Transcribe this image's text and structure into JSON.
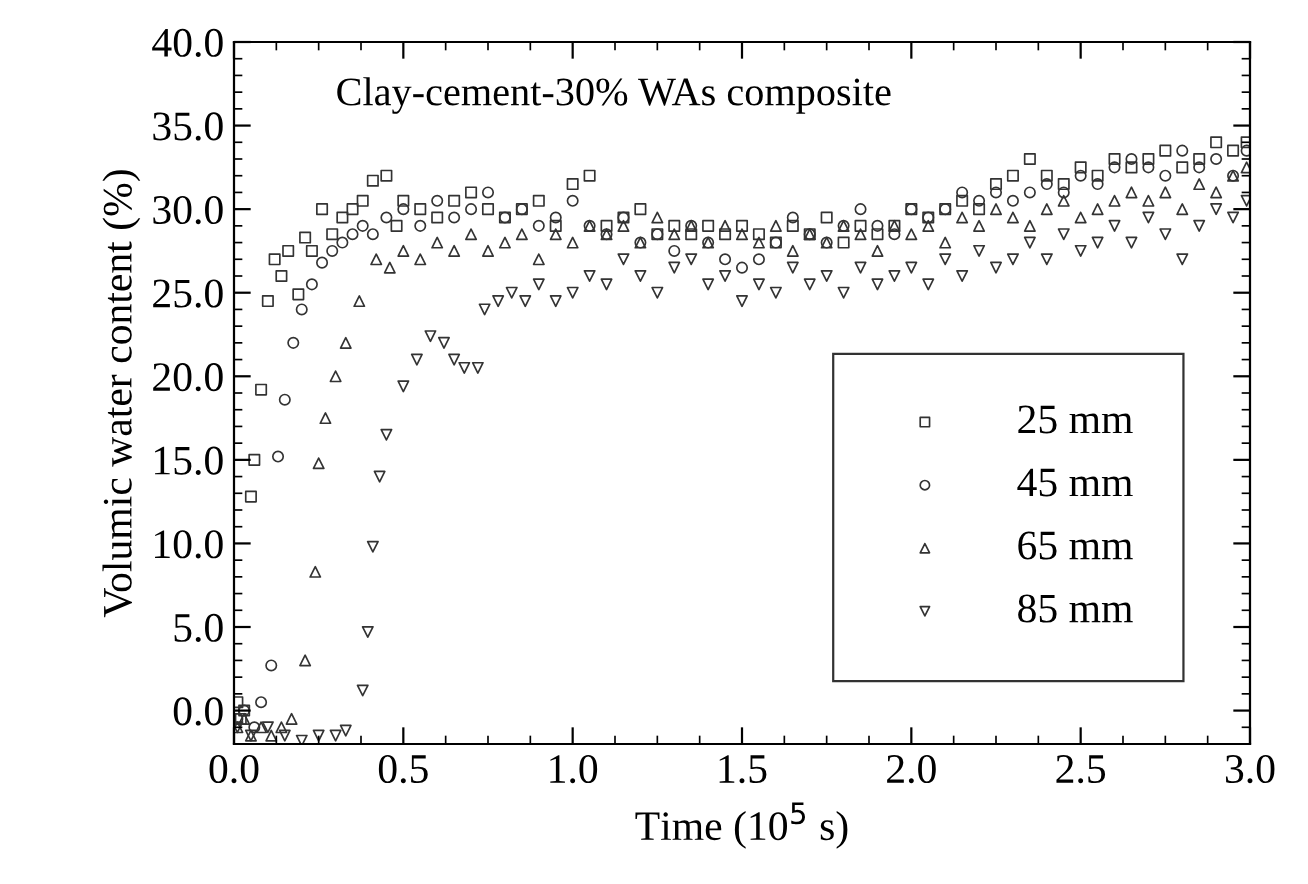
{
  "chart_data": {
    "type": "scatter",
    "xlabel": "Time (10$^{5}$ s)",
    "ylabel": "Volumic water content (%)",
    "annotations": [
      "Clay-cement-30% WAs composite"
    ],
    "xlim": [
      0.0,
      3.0
    ],
    "ylim": [
      -2.0,
      40.0
    ],
    "xticks": [
      {
        "value": 0.0,
        "label": "0.0"
      },
      {
        "value": 0.5,
        "label": "0.5"
      },
      {
        "value": 1.0,
        "label": "1.0"
      },
      {
        "value": 1.5,
        "label": "1.5"
      },
      {
        "value": 2.0,
        "label": "2.0"
      },
      {
        "value": 2.5,
        "label": "2.5"
      },
      {
        "value": 3.0,
        "label": "3.0"
      }
    ],
    "yticks": [
      {
        "value": 0,
        "label": "0.0"
      },
      {
        "value": 5,
        "label": "5.0"
      },
      {
        "value": 10,
        "label": "10.0"
      },
      {
        "value": 15,
        "label": "15.0"
      },
      {
        "value": 20,
        "label": "20.0"
      },
      {
        "value": 25,
        "label": "25.0"
      },
      {
        "value": 30,
        "label": "30.0"
      },
      {
        "value": 35,
        "label": "35.0"
      },
      {
        "value": 40,
        "label": "40.0"
      }
    ],
    "grid": false,
    "legend": "bottom right",
    "series": [
      {
        "name": "25 mm",
        "color": "#333333",
        "marker": "square",
        "x": [
          0.01,
          0.02,
          0.03,
          0.05,
          0.06,
          0.08,
          0.1,
          0.12,
          0.14,
          0.16,
          0.19,
          0.21,
          0.23,
          0.26,
          0.29,
          0.32,
          0.35,
          0.38,
          0.41,
          0.45,
          0.48,
          0.5,
          0.55,
          0.6,
          0.65,
          0.7,
          0.75,
          0.8,
          0.85,
          0.9,
          0.95,
          1.0,
          1.05,
          1.1,
          1.15,
          1.2,
          1.25,
          1.3,
          1.35,
          1.4,
          1.45,
          1.5,
          1.55,
          1.6,
          1.65,
          1.7,
          1.75,
          1.8,
          1.85,
          1.9,
          1.95,
          2.0,
          2.05,
          2.1,
          2.15,
          2.2,
          2.25,
          2.3,
          2.35,
          2.4,
          2.45,
          2.5,
          2.55,
          2.6,
          2.65,
          2.7,
          2.75,
          2.8,
          2.85,
          2.9,
          2.95,
          2.99
        ],
        "values": [
          0.5,
          -0.5,
          0,
          12.8,
          15,
          19.2,
          24.5,
          27,
          26,
          27.5,
          24.9,
          28.3,
          27.5,
          30,
          28.5,
          29.5,
          30,
          30.5,
          31.7,
          32,
          29,
          30.5,
          30,
          29.5,
          30.5,
          31,
          30,
          29.5,
          30,
          30.5,
          29,
          31.5,
          32,
          29,
          29.5,
          30,
          28.5,
          29,
          28.5,
          29,
          28.5,
          29,
          28.5,
          28,
          29,
          28.5,
          29.5,
          28,
          29,
          28.5,
          29,
          30,
          29.5,
          30,
          30.5,
          30,
          31.5,
          32,
          33,
          32,
          31.5,
          32.5,
          32,
          33,
          32.5,
          33,
          33.5,
          32.5,
          33,
          34,
          33.5,
          34
        ]
      },
      {
        "name": "45 mm",
        "color": "#333333",
        "marker": "circle",
        "x": [
          0.01,
          0.03,
          0.06,
          0.08,
          0.11,
          0.13,
          0.15,
          0.175,
          0.2,
          0.23,
          0.26,
          0.29,
          0.32,
          0.35,
          0.38,
          0.41,
          0.45,
          0.5,
          0.55,
          0.6,
          0.65,
          0.7,
          0.75,
          0.8,
          0.85,
          0.9,
          0.95,
          1.0,
          1.05,
          1.1,
          1.15,
          1.2,
          1.25,
          1.3,
          1.35,
          1.4,
          1.45,
          1.5,
          1.55,
          1.6,
          1.65,
          1.7,
          1.75,
          1.8,
          1.85,
          1.9,
          1.95,
          2.0,
          2.05,
          2.1,
          2.15,
          2.2,
          2.25,
          2.3,
          2.35,
          2.4,
          2.45,
          2.5,
          2.55,
          2.6,
          2.65,
          2.7,
          2.75,
          2.8,
          2.85,
          2.9,
          2.95,
          2.99
        ],
        "values": [
          -0.5,
          0,
          -1,
          0.5,
          2.7,
          15.2,
          18.6,
          22,
          24,
          25.5,
          26.8,
          27.5,
          28,
          28.5,
          29,
          28.5,
          29.5,
          30,
          29,
          30.5,
          29.5,
          30,
          31,
          29.5,
          30,
          29,
          29.5,
          30.5,
          29,
          28.5,
          29.5,
          28,
          28.5,
          27.5,
          29,
          28,
          27,
          26.5,
          27,
          28,
          29.5,
          28.5,
          28,
          29,
          30,
          29,
          28.5,
          30,
          29.5,
          30,
          31,
          30.5,
          31,
          30.5,
          31,
          31.5,
          31,
          32,
          31.5,
          32.5,
          33,
          32.5,
          32,
          33.5,
          32.5,
          33,
          32,
          33.5
        ]
      },
      {
        "name": "65 mm",
        "color": "#333333",
        "marker": "triangle",
        "x": [
          0.01,
          0.03,
          0.05,
          0.08,
          0.11,
          0.14,
          0.17,
          0.21,
          0.24,
          0.25,
          0.27,
          0.3,
          0.33,
          0.37,
          0.42,
          0.46,
          0.5,
          0.55,
          0.6,
          0.65,
          0.7,
          0.75,
          0.8,
          0.85,
          0.9,
          0.95,
          1.0,
          1.05,
          1.1,
          1.15,
          1.2,
          1.25,
          1.3,
          1.35,
          1.4,
          1.45,
          1.5,
          1.55,
          1.6,
          1.65,
          1.7,
          1.75,
          1.8,
          1.85,
          1.9,
          1.95,
          2.0,
          2.05,
          2.1,
          2.15,
          2.2,
          2.25,
          2.3,
          2.35,
          2.4,
          2.45,
          2.5,
          2.55,
          2.6,
          2.65,
          2.7,
          2.75,
          2.8,
          2.85,
          2.9,
          2.95,
          2.99
        ],
        "values": [
          -1,
          -0.5,
          -1.5,
          -1,
          -1.5,
          -1,
          -0.5,
          3,
          8.3,
          14.8,
          17.5,
          20,
          22,
          24.5,
          27,
          26.5,
          27.5,
          27,
          28,
          27.5,
          28.5,
          27.5,
          28,
          28.5,
          27,
          28.5,
          28,
          29,
          28.5,
          29,
          28,
          29.5,
          28.5,
          29,
          28,
          29,
          28.5,
          28,
          29,
          27.5,
          28.5,
          28,
          29,
          28.5,
          27.5,
          29,
          28.5,
          29,
          28,
          29.5,
          29,
          30,
          29.5,
          29,
          30,
          30.5,
          29.5,
          30,
          30.5,
          31,
          30.5,
          31,
          30,
          31.5,
          31,
          32,
          32.5
        ]
      },
      {
        "name": "85 mm",
        "color": "#333333",
        "marker": "triangle_down",
        "x": [
          0.01,
          0.05,
          0.1,
          0.15,
          0.2,
          0.25,
          0.3,
          0.33,
          0.38,
          0.395,
          0.41,
          0.43,
          0.45,
          0.5,
          0.54,
          0.58,
          0.62,
          0.65,
          0.68,
          0.72,
          0.74,
          0.78,
          0.82,
          0.86,
          0.9,
          0.95,
          1.0,
          1.05,
          1.1,
          1.15,
          1.2,
          1.25,
          1.3,
          1.35,
          1.4,
          1.45,
          1.5,
          1.55,
          1.6,
          1.65,
          1.7,
          1.75,
          1.8,
          1.85,
          1.9,
          1.95,
          2.0,
          2.05,
          2.1,
          2.15,
          2.2,
          2.25,
          2.3,
          2.35,
          2.4,
          2.45,
          2.5,
          2.55,
          2.6,
          2.65,
          2.7,
          2.75,
          2.8,
          2.85,
          2.9,
          2.95,
          2.99
        ],
        "values": [
          -1,
          -1.5,
          -1,
          -1.5,
          -1.8,
          -1.5,
          -1.5,
          -1.2,
          1.2,
          4.7,
          9.8,
          14,
          16.5,
          19.4,
          21,
          22.4,
          22,
          21,
          20.5,
          20.5,
          24,
          24.5,
          25,
          24.5,
          25.5,
          24.5,
          25,
          26,
          25.5,
          27,
          26,
          25,
          26.5,
          27,
          25.5,
          26,
          24.5,
          25.5,
          25,
          26.5,
          25.5,
          26,
          25,
          26.5,
          25.5,
          26,
          26.5,
          25.5,
          27,
          26,
          27.5,
          26.5,
          27,
          28,
          27,
          28.5,
          27.5,
          28,
          29,
          28,
          29.5,
          28.5,
          27,
          29,
          30,
          29.5,
          30.5
        ]
      }
    ]
  }
}
